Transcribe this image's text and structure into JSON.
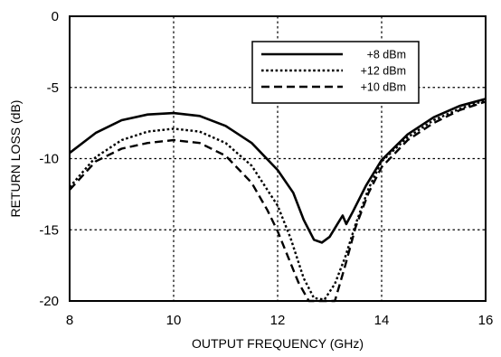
{
  "chart_data": {
    "type": "line",
    "xlabel": "OUTPUT FREQUENCY (GHz)",
    "ylabel": "RETURN LOSS (dB)",
    "xlim": [
      8,
      16
    ],
    "ylim": [
      -20,
      0
    ],
    "x_ticks": [
      8,
      10,
      12,
      14,
      16
    ],
    "y_ticks": [
      0,
      -5,
      -10,
      -15,
      -20
    ],
    "grid": true,
    "legend_position": "top-right",
    "series": [
      {
        "name": "+8 dBm",
        "style": "solid",
        "points": [
          [
            8,
            -9.6
          ],
          [
            8.5,
            -8.2
          ],
          [
            9,
            -7.3
          ],
          [
            9.5,
            -6.9
          ],
          [
            10,
            -6.8
          ],
          [
            10.5,
            -7.0
          ],
          [
            11,
            -7.7
          ],
          [
            11.5,
            -8.9
          ],
          [
            12,
            -10.8
          ],
          [
            12.3,
            -12.4
          ],
          [
            12.5,
            -14.3
          ],
          [
            12.7,
            -15.7
          ],
          [
            12.85,
            -15.9
          ],
          [
            13,
            -15.5
          ],
          [
            13.15,
            -14.6
          ],
          [
            13.25,
            -14.0
          ],
          [
            13.32,
            -14.6
          ],
          [
            13.45,
            -13.7
          ],
          [
            13.7,
            -11.9
          ],
          [
            14,
            -10.1
          ],
          [
            14.5,
            -8.3
          ],
          [
            15,
            -7.1
          ],
          [
            15.5,
            -6.3
          ],
          [
            16,
            -5.8
          ]
        ]
      },
      {
        "name": "+12 dBm",
        "style": "dotted",
        "points": [
          [
            8,
            -12.0
          ],
          [
            8.5,
            -9.9
          ],
          [
            9,
            -8.7
          ],
          [
            9.5,
            -8.1
          ],
          [
            10,
            -7.9
          ],
          [
            10.5,
            -8.1
          ],
          [
            11,
            -8.9
          ],
          [
            11.5,
            -10.5
          ],
          [
            12,
            -13.3
          ],
          [
            12.25,
            -15.6
          ],
          [
            12.5,
            -18.4
          ],
          [
            12.7,
            -19.8
          ],
          [
            12.9,
            -19.9
          ],
          [
            13.1,
            -18.8
          ],
          [
            13.3,
            -16.9
          ],
          [
            13.5,
            -14.6
          ],
          [
            13.75,
            -12.1
          ],
          [
            14,
            -10.2
          ],
          [
            14.5,
            -8.5
          ],
          [
            15,
            -7.3
          ],
          [
            15.5,
            -6.5
          ],
          [
            16,
            -5.9
          ]
        ]
      },
      {
        "name": "+10 dBm",
        "style": "dashed",
        "points": [
          [
            8,
            -12.2
          ],
          [
            8.5,
            -10.2
          ],
          [
            9,
            -9.3
          ],
          [
            9.5,
            -8.9
          ],
          [
            10,
            -8.7
          ],
          [
            10.5,
            -8.9
          ],
          [
            11,
            -9.8
          ],
          [
            11.5,
            -11.7
          ],
          [
            11.8,
            -13.6
          ],
          [
            12,
            -15.1
          ],
          [
            12.2,
            -16.9
          ],
          [
            12.4,
            -18.7
          ],
          [
            12.6,
            -20.0
          ],
          [
            13.1,
            -20.0
          ],
          [
            13.3,
            -17.5
          ],
          [
            13.5,
            -14.8
          ],
          [
            13.75,
            -12.4
          ],
          [
            14,
            -10.6
          ],
          [
            14.5,
            -8.7
          ],
          [
            15,
            -7.5
          ],
          [
            15.5,
            -6.6
          ],
          [
            16,
            -6.0
          ]
        ]
      }
    ]
  }
}
